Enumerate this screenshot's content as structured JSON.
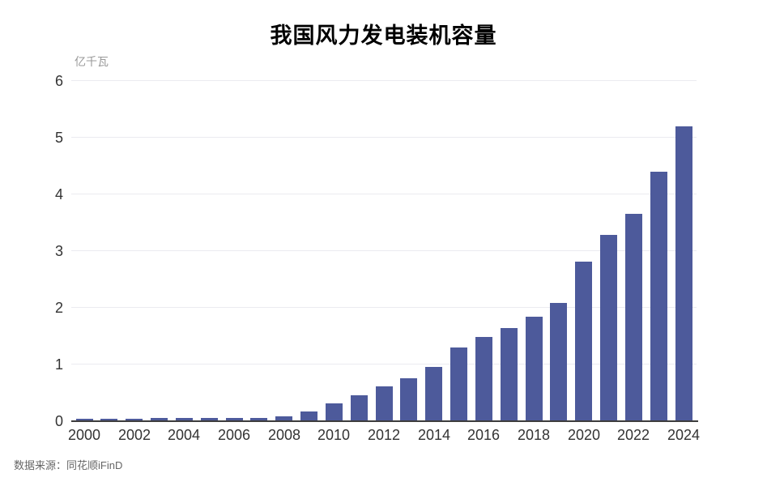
{
  "title": "我国风力发电装机容量",
  "footer": {
    "source": "数据来源：同花顺iFinD"
  },
  "chart_data": {
    "type": "bar",
    "title": "我国风力发电装机容量",
    "ylabel": "亿千瓦",
    "xlabel": "",
    "categories": [
      2000,
      2001,
      2002,
      2003,
      2004,
      2005,
      2006,
      2007,
      2008,
      2009,
      2010,
      2011,
      2012,
      2013,
      2014,
      2015,
      2016,
      2017,
      2018,
      2019,
      2020,
      2021,
      2022,
      2023,
      2024
    ],
    "values": [
      0.04,
      0.04,
      0.04,
      0.05,
      0.05,
      0.05,
      0.05,
      0.06,
      0.09,
      0.17,
      0.31,
      0.46,
      0.61,
      0.76,
      0.96,
      1.3,
      1.48,
      1.64,
      1.84,
      2.09,
      2.81,
      3.28,
      3.65,
      4.4,
      5.2
    ],
    "ylim": [
      0,
      6
    ],
    "yticks": [
      0,
      1,
      2,
      3,
      4,
      5,
      6
    ],
    "xtick_interval": 2,
    "grid": "horizontal",
    "legend_position": "none",
    "colors": {
      "bar": "#4d5a9b",
      "gridline": "#ebebf0",
      "axis_line": "#3d3d3d",
      "tick_label": "#333333",
      "unit_label": "#999999",
      "source_text": "#666666"
    }
  }
}
